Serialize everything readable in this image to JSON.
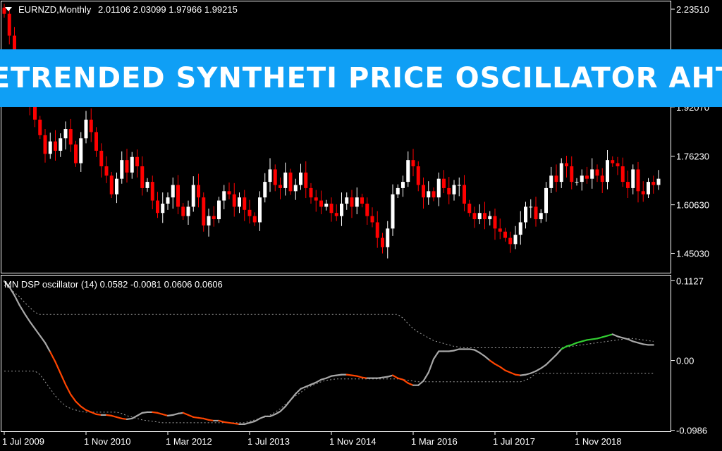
{
  "chart_header": {
    "symbol": "EURNZD,Monthly",
    "ohlc": "2.01106 2.03099 1.97966 1.99215"
  },
  "banner": {
    "title": "DETRENDED SYNTHETI PRICE OSCILLATOR AHTF"
  },
  "indicator_header": {
    "text": "MN DSP oscillator (14) 0.0582 -0.0081 0.0606 0.0606"
  },
  "colors": {
    "background": "#000000",
    "grid_border": "#ffffff",
    "bull_candle": "#ffffff",
    "bear_candle": "#ff0000",
    "banner": "#0f9ff5",
    "osc_neutral": "#a8a8a8",
    "osc_down": "#ff4500",
    "osc_up": "#32cd32",
    "levels": "#a0a0a0"
  },
  "chart_data": [
    {
      "type": "candlestick",
      "title": "",
      "price_axis_labels": [
        "2.23510",
        "1.92070",
        "1.76230",
        "1.60630",
        "1.45030"
      ],
      "price_axis_values": [
        2.2351,
        1.9207,
        1.7623,
        1.6063,
        1.4503
      ],
      "ylim": [
        1.388,
        2.26
      ],
      "closes": [
        2.22,
        2.15,
        2.06,
        2.01,
        1.96,
        1.93,
        1.88,
        1.83,
        1.77,
        1.81,
        1.78,
        1.82,
        1.85,
        1.8,
        1.74,
        1.82,
        1.88,
        1.84,
        1.78,
        1.73,
        1.7,
        1.64,
        1.69,
        1.75,
        1.71,
        1.76,
        1.73,
        1.66,
        1.68,
        1.62,
        1.58,
        1.61,
        1.63,
        1.67,
        1.6,
        1.57,
        1.6,
        1.67,
        1.63,
        1.54,
        1.57,
        1.56,
        1.62,
        1.65,
        1.64,
        1.6,
        1.63,
        1.59,
        1.57,
        1.55,
        1.63,
        1.68,
        1.72,
        1.67,
        1.66,
        1.71,
        1.65,
        1.67,
        1.71,
        1.66,
        1.63,
        1.62,
        1.6,
        1.61,
        1.58,
        1.57,
        1.61,
        1.63,
        1.6,
        1.63,
        1.61,
        1.57,
        1.55,
        1.5,
        1.47,
        1.53,
        1.64,
        1.66,
        1.68,
        1.75,
        1.73,
        1.67,
        1.63,
        1.65,
        1.63,
        1.69,
        1.66,
        1.64,
        1.67,
        1.67,
        1.61,
        1.58,
        1.56,
        1.58,
        1.56,
        1.57,
        1.53,
        1.52,
        1.5,
        1.48,
        1.51,
        1.55,
        1.6,
        1.6,
        1.56,
        1.58,
        1.66,
        1.7,
        1.68,
        1.74,
        1.73,
        1.68,
        1.68,
        1.7,
        1.69,
        1.72,
        1.7,
        1.68,
        1.75,
        1.74,
        1.73,
        1.68,
        1.66,
        1.72,
        1.65,
        1.64,
        1.68,
        1.67,
        1.69
      ]
    },
    {
      "type": "line",
      "title": "",
      "value_axis_labels": [
        "0.1127",
        "0.00",
        "-0.0986"
      ],
      "value_axis_values": [
        0.1127,
        0.0,
        -0.0986
      ],
      "ylim": [
        -0.1,
        0.12
      ],
      "x_tick_labels": [
        "1 Jul 2009",
        "1 Nov 2010",
        "1 Mar 2012",
        "1 Jul 2013",
        "1 Nov 2014",
        "1 Mar 2016",
        "1 Jul 2017",
        "1 Nov 2018"
      ],
      "x_tick_index": [
        0,
        16,
        32,
        48,
        64,
        80,
        96,
        112
      ],
      "series": [
        {
          "values": [
            0.112,
            0.104,
            0.092,
            0.078,
            0.066,
            0.055,
            0.045,
            0.035,
            0.025,
            0.012,
            -0.002,
            -0.018,
            -0.034,
            -0.048,
            -0.058,
            -0.065,
            -0.07,
            -0.073,
            -0.076,
            -0.077,
            -0.077,
            -0.078,
            -0.08,
            -0.082,
            -0.083,
            -0.082,
            -0.078,
            -0.074,
            -0.073,
            -0.073,
            -0.074,
            -0.076,
            -0.078,
            -0.077,
            -0.075,
            -0.074,
            -0.077,
            -0.08,
            -0.081,
            -0.082,
            -0.084,
            -0.085,
            -0.085,
            -0.087,
            -0.088,
            -0.089,
            -0.09,
            -0.09,
            -0.088,
            -0.086,
            -0.082,
            -0.079,
            -0.079,
            -0.076,
            -0.072,
            -0.065,
            -0.056,
            -0.047,
            -0.04,
            -0.037,
            -0.034,
            -0.031,
            -0.027,
            -0.025,
            -0.022,
            -0.021,
            -0.02,
            -0.02,
            -0.021,
            -0.022,
            -0.024,
            -0.025,
            -0.025,
            -0.025,
            -0.024,
            -0.023,
            -0.021,
            -0.025,
            -0.027,
            -0.032,
            -0.035,
            -0.035,
            -0.029,
            -0.017,
            0.002,
            0.013,
            0.013,
            0.013,
            0.014,
            0.016,
            0.016,
            0.016,
            0.015,
            0.011,
            0.006,
            0.0,
            -0.005,
            -0.009,
            -0.014,
            -0.017,
            -0.02,
            -0.021,
            -0.02,
            -0.018,
            -0.015,
            -0.011,
            -0.006,
            0.001,
            0.008,
            0.016,
            0.02,
            0.022,
            0.025,
            0.027,
            0.029,
            0.03,
            0.031,
            0.033,
            0.035,
            0.037,
            0.034,
            0.032,
            0.03,
            0.027,
            0.025,
            0.023,
            0.022,
            0.022
          ]
        },
        {
          "values": [
            0.106,
            0.102,
            0.096,
            0.09,
            0.082,
            0.075,
            0.068,
            0.065,
            0.065,
            0.065,
            0.065,
            0.065,
            0.065,
            0.065,
            0.065,
            0.065,
            0.065,
            0.065,
            0.065,
            0.065,
            0.065,
            0.065,
            0.065,
            0.065,
            0.065,
            0.065,
            0.065,
            0.065,
            0.065,
            0.065,
            0.065,
            0.065,
            0.065,
            0.065,
            0.065,
            0.065,
            0.065,
            0.065,
            0.065,
            0.065,
            0.065,
            0.065,
            0.065,
            0.065,
            0.065,
            0.065,
            0.065,
            0.065,
            0.065,
            0.065,
            0.065,
            0.065,
            0.065,
            0.065,
            0.065,
            0.065,
            0.065,
            0.065,
            0.065,
            0.065,
            0.065,
            0.065,
            0.065,
            0.065,
            0.065,
            0.065,
            0.065,
            0.065,
            0.065,
            0.065,
            0.065,
            0.065,
            0.065,
            0.065,
            0.065,
            0.065,
            0.065,
            0.065,
            0.06,
            0.052,
            0.045,
            0.04,
            0.036,
            0.032,
            0.028,
            0.026,
            0.024,
            0.022,
            0.02,
            0.019,
            0.018,
            0.018,
            0.018,
            0.018,
            0.018,
            0.018,
            0.018,
            0.018,
            0.018,
            0.018,
            0.018,
            0.018,
            0.018,
            0.018,
            0.018,
            0.018,
            0.018,
            0.018,
            0.018,
            0.018,
            0.019,
            0.02,
            0.021,
            0.022,
            0.023,
            0.024,
            0.025,
            0.026,
            0.027,
            0.028,
            0.029,
            0.03,
            0.031,
            0.031,
            0.03,
            0.029,
            0.028,
            0.027
          ]
        },
        {
          "values": [
            -0.015,
            -0.015,
            -0.015,
            -0.015,
            -0.015,
            -0.015,
            -0.015,
            -0.02,
            -0.03,
            -0.04,
            -0.05,
            -0.058,
            -0.064,
            -0.068,
            -0.07,
            -0.072,
            -0.073,
            -0.073,
            -0.073,
            -0.073,
            -0.073,
            -0.073,
            -0.073,
            -0.075,
            -0.078,
            -0.08,
            -0.082,
            -0.084,
            -0.085,
            -0.086,
            -0.087,
            -0.088,
            -0.088,
            -0.088,
            -0.088,
            -0.088,
            -0.088,
            -0.088,
            -0.088,
            -0.088,
            -0.088,
            -0.088,
            -0.088,
            -0.088,
            -0.088,
            -0.088,
            -0.088,
            -0.088,
            -0.086,
            -0.084,
            -0.082,
            -0.08,
            -0.077,
            -0.073,
            -0.068,
            -0.062,
            -0.056,
            -0.05,
            -0.045,
            -0.04,
            -0.036,
            -0.033,
            -0.03,
            -0.028,
            -0.027,
            -0.026,
            -0.026,
            -0.026,
            -0.026,
            -0.026,
            -0.026,
            -0.026,
            -0.026,
            -0.026,
            -0.026,
            -0.026,
            -0.026,
            -0.026,
            -0.027,
            -0.028,
            -0.029,
            -0.03,
            -0.03,
            -0.03,
            -0.03,
            -0.03,
            -0.03,
            -0.03,
            -0.03,
            -0.03,
            -0.03,
            -0.03,
            -0.03,
            -0.03,
            -0.03,
            -0.03,
            -0.03,
            -0.03,
            -0.03,
            -0.03,
            -0.03,
            -0.03,
            -0.028,
            -0.024,
            -0.018,
            -0.018,
            -0.018,
            -0.018,
            -0.018,
            -0.018,
            -0.018,
            -0.018,
            -0.018,
            -0.018,
            -0.018,
            -0.018,
            -0.018,
            -0.018,
            -0.018,
            -0.018,
            -0.018,
            -0.018,
            -0.018,
            -0.018,
            -0.018,
            -0.018,
            -0.018,
            -0.018
          ]
        }
      ]
    }
  ]
}
